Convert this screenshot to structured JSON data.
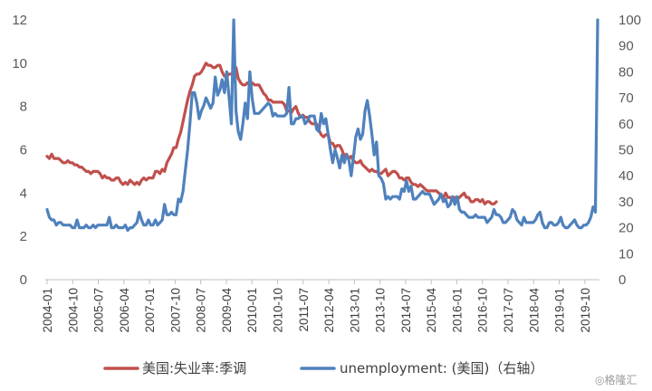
{
  "chart_data": {
    "type": "line",
    "x_labels": [
      "2004-01",
      "2004-10",
      "2005-07",
      "2006-04",
      "2007-01",
      "2007-10",
      "2008-07",
      "2009-04",
      "2010-01",
      "2010-10",
      "2011-07",
      "2012-04",
      "2013-01",
      "2013-10",
      "2014-07",
      "2015-04",
      "2016-01",
      "2016-10",
      "2017-07",
      "2018-04",
      "2019-01",
      "2019-10"
    ],
    "y_left": {
      "min": 0,
      "max": 12,
      "ticks": [
        "0",
        "2",
        "4",
        "6",
        "8",
        "10",
        "12"
      ]
    },
    "y_right": {
      "min": 0,
      "max": 100,
      "ticks": [
        "0",
        "10",
        "20",
        "30",
        "40",
        "50",
        "60",
        "70",
        "80",
        "90",
        "100"
      ]
    },
    "series": [
      {
        "name": "美国:失业率:季调",
        "color": "#c0504d",
        "axis": "left",
        "values": [
          5.7,
          5.6,
          5.8,
          5.6,
          5.6,
          5.6,
          5.5,
          5.4,
          5.4,
          5.5,
          5.4,
          5.4,
          5.3,
          5.3,
          5.2,
          5.2,
          5.1,
          5.0,
          5.0,
          4.9,
          5.0,
          5.0,
          5.0,
          4.9,
          4.7,
          4.8,
          4.7,
          4.7,
          4.6,
          4.6,
          4.7,
          4.7,
          4.5,
          4.4,
          4.5,
          4.4,
          4.6,
          4.5,
          4.4,
          4.5,
          4.4,
          4.6,
          4.7,
          4.6,
          4.7,
          4.7,
          4.7,
          5.0,
          5.0,
          4.9,
          5.1,
          5.0,
          5.4,
          5.6,
          5.8,
          6.1,
          6.1,
          6.5,
          6.8,
          7.3,
          7.8,
          8.3,
          8.7,
          9.0,
          9.4,
          9.5,
          9.5,
          9.6,
          9.8,
          10.0,
          9.9,
          9.9,
          9.8,
          9.8,
          9.9,
          9.9,
          9.6,
          9.4,
          9.4,
          9.5,
          9.5,
          9.4,
          9.8,
          9.3,
          9.1,
          9.0,
          9.0,
          9.1,
          9.0,
          9.1,
          9.0,
          9.0,
          9.0,
          8.8,
          8.6,
          8.5,
          8.3,
          8.3,
          8.2,
          8.2,
          8.2,
          8.2,
          8.2,
          8.1,
          7.8,
          7.8,
          7.7,
          7.9,
          8.0,
          7.7,
          7.5,
          7.6,
          7.5,
          7.5,
          7.3,
          7.2,
          7.2,
          7.2,
          6.9,
          6.7,
          6.6,
          6.7,
          6.7,
          6.3,
          6.3,
          6.1,
          6.2,
          6.2,
          6.0,
          5.7,
          5.8,
          5.6,
          5.7,
          5.5,
          5.4,
          5.4,
          5.5,
          5.3,
          5.2,
          5.1,
          5.0,
          5.1,
          5.0,
          5.0,
          4.9,
          4.9,
          5.0,
          5.1,
          4.8,
          4.9,
          5.0,
          5.0,
          4.9,
          4.7,
          4.7,
          4.6,
          4.7,
          4.7,
          4.5,
          4.4,
          4.4,
          4.3,
          4.4,
          4.3,
          4.2,
          4.1,
          4.1,
          4.1,
          4.1,
          4.1,
          4.0,
          3.9,
          3.8,
          4.0,
          3.8,
          3.8,
          3.7,
          3.8,
          3.7,
          3.8,
          3.9,
          4.0,
          3.8,
          3.8,
          3.6,
          3.6,
          3.7,
          3.7,
          3.6,
          3.7,
          3.5,
          3.6,
          3.6,
          3.5,
          3.5,
          3.6
        ]
      },
      {
        "name": "unemployment: (美国)（右轴）",
        "color": "#4f81bd",
        "axis": "right",
        "values": [
          27,
          24,
          23,
          23,
          21,
          22,
          22,
          21,
          21,
          21,
          21,
          20,
          20,
          23,
          20,
          20,
          20,
          21,
          20,
          20,
          21,
          20,
          21,
          21,
          21,
          21,
          21,
          24,
          20,
          20,
          21,
          20,
          20,
          20,
          21,
          19,
          20,
          20,
          21,
          22,
          26,
          23,
          21,
          21,
          23,
          21,
          21,
          23,
          21,
          22,
          23,
          29,
          25,
          25,
          26,
          25,
          25,
          31,
          30,
          34,
          42,
          50,
          60,
          72,
          72,
          68,
          62,
          65,
          67,
          70,
          68,
          66,
          68,
          78,
          71,
          73,
          77,
          72,
          80,
          70,
          60,
          100,
          65,
          57,
          54,
          60,
          68,
          62,
          80,
          70,
          64,
          64,
          64,
          65,
          66,
          67,
          68,
          67,
          63,
          64,
          63,
          63,
          63,
          63,
          64,
          74,
          60,
          60,
          62,
          62,
          63,
          63,
          60,
          61,
          63,
          63,
          63,
          58,
          57,
          64,
          60,
          62,
          56,
          50,
          45,
          50,
          47,
          43,
          48,
          45,
          48,
          46,
          40,
          47,
          55,
          58,
          54,
          56,
          65,
          69,
          63,
          56,
          48,
          53,
          40,
          39,
          37,
          31,
          32,
          31,
          32,
          32,
          32,
          31,
          35,
          34,
          38,
          34,
          36,
          31,
          31,
          32,
          33,
          34,
          33,
          33,
          33,
          31,
          29,
          30,
          31,
          33,
          30,
          31,
          28,
          29,
          32,
          29,
          32,
          27,
          26,
          26,
          25,
          24,
          24,
          24,
          25,
          24,
          24,
          24,
          24,
          22,
          23,
          24,
          27,
          25,
          25,
          24,
          22,
          22,
          23,
          24,
          27,
          26,
          23,
          22,
          21,
          24,
          22,
          22,
          22,
          22,
          23,
          25,
          26,
          22,
          20,
          20,
          22,
          22,
          21,
          21,
          22,
          24,
          21,
          20,
          20,
          21,
          22,
          23,
          21,
          20,
          20,
          21,
          21,
          22,
          24,
          28,
          26,
          100
        ]
      }
    ],
    "legend_position": "bottom",
    "grid": false
  },
  "watermark": "◎格隆汇"
}
